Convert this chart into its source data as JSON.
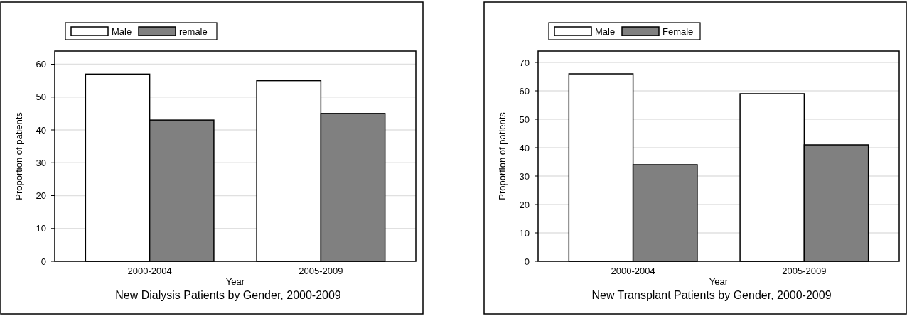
{
  "chart_data": [
    {
      "type": "bar",
      "title": "New Dialysis Patients by Gender, 2000-2009",
      "xlabel": "Year",
      "ylabel": "Proportion of patients",
      "categories": [
        "2000-2004",
        "2005-2009"
      ],
      "series": [
        {
          "name": "Male",
          "color": "#ffffff",
          "values": [
            57,
            55
          ]
        },
        {
          "name": "remale",
          "color": "#808080",
          "values": [
            43,
            45
          ]
        }
      ],
      "ylim": [
        0,
        64
      ],
      "yticks": [
        0,
        10,
        20,
        30,
        40,
        50,
        60
      ],
      "grid": "y",
      "legend": "top left"
    },
    {
      "type": "bar",
      "title": "New Transplant Patients by Gender, 2000-2009",
      "xlabel": "Year",
      "ylabel": "Proportion of patients",
      "categories": [
        "2000-2004",
        "2005-2009"
      ],
      "series": [
        {
          "name": "Male",
          "color": "#ffffff",
          "values": [
            66,
            59
          ]
        },
        {
          "name": "Female",
          "color": "#808080",
          "values": [
            34,
            41
          ]
        }
      ],
      "ylim": [
        0,
        74
      ],
      "yticks": [
        0,
        10,
        20,
        30,
        40,
        50,
        60,
        70
      ],
      "grid": "y",
      "legend": "top left"
    }
  ]
}
